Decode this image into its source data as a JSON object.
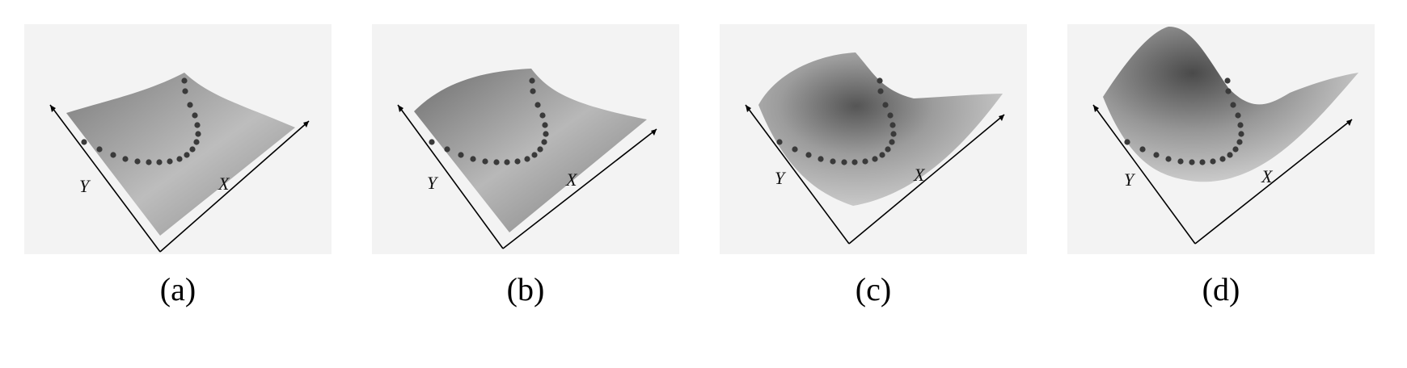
{
  "panels": [
    {
      "caption": "(a)",
      "x_label": "X",
      "y_label": "Y"
    },
    {
      "caption": "(b)",
      "x_label": "X",
      "y_label": "Y"
    },
    {
      "caption": "(c)",
      "x_label": "X",
      "y_label": "Y"
    },
    {
      "caption": "(d)",
      "x_label": "X",
      "y_label": "Y"
    }
  ],
  "colors": {
    "background": "#f3f3f3",
    "surface_light": "#d9d9d9",
    "surface_dark": "#6e6e6e",
    "points": "#3a3a3a",
    "axes": "#000000"
  }
}
